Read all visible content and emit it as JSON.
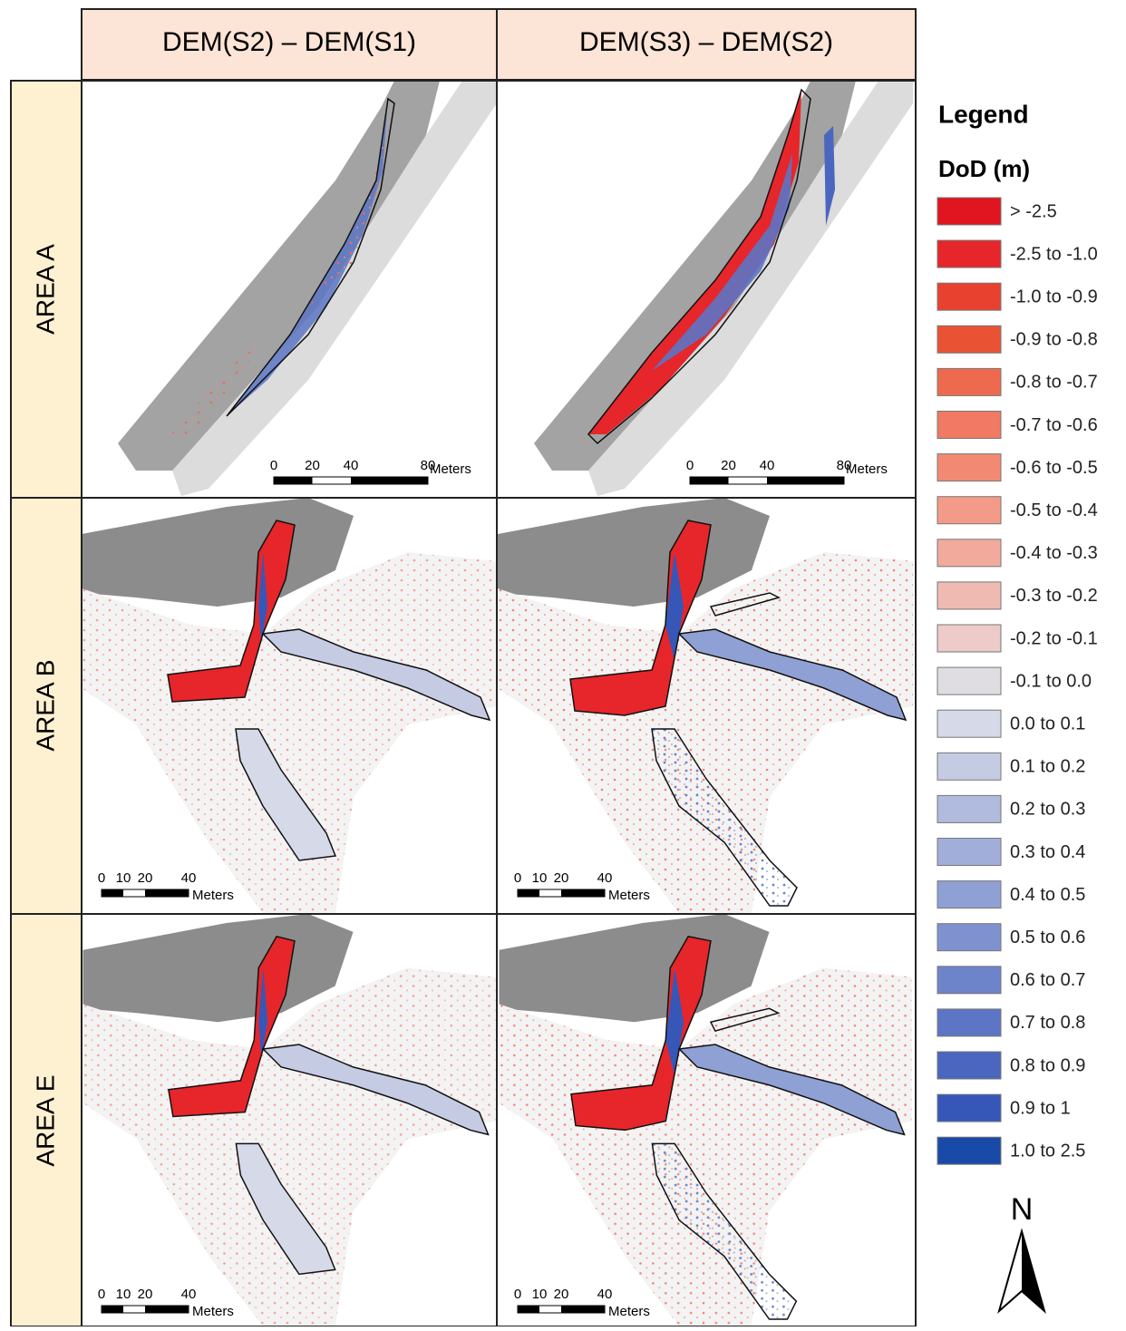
{
  "header": {
    "columns": [
      "DEM(S2) – DEM(S1)",
      "DEM(S3) – DEM(S2)"
    ]
  },
  "rows": [
    {
      "label": "AREA A",
      "scale_bar": {
        "ticks": [
          0,
          20,
          40,
          80
        ],
        "unit": "Meters"
      }
    },
    {
      "label": "AREA B",
      "scale_bar": {
        "ticks": [
          0,
          10,
          20,
          40
        ],
        "unit": "Meters"
      }
    },
    {
      "label": "AREA E",
      "scale_bar": {
        "ticks": [
          0,
          10,
          20,
          40
        ],
        "unit": "Meters"
      }
    }
  ],
  "legend": {
    "title": "Legend",
    "subtitle": "DoD (m)",
    "items": [
      {
        "label": "> -2.5",
        "color": "#e0151f"
      },
      {
        "label": "-2.5 to -1.0",
        "color": "#e6262a"
      },
      {
        "label": "-1.0 to -0.9",
        "color": "#e8412f"
      },
      {
        "label": "-0.9 to -0.8",
        "color": "#ea5234"
      },
      {
        "label": "-0.8 to -0.7",
        "color": "#ee6a4f"
      },
      {
        "label": "-0.7 to -0.6",
        "color": "#f07a63"
      },
      {
        "label": "-0.6 to -0.5",
        "color": "#f28a73"
      },
      {
        "label": "-0.5 to -0.4",
        "color": "#f39b88"
      },
      {
        "label": "-0.4 to -0.3",
        "color": "#f2aa9c"
      },
      {
        "label": "-0.3 to -0.2",
        "color": "#efbab2"
      },
      {
        "label": "-0.2 to -0.1",
        "color": "#eccbc8"
      },
      {
        "label": "-0.1 to 0.0",
        "color": "#e0dde2"
      },
      {
        "label": "0.0 to 0.1",
        "color": "#d6d9e8"
      },
      {
        "label": "0.1 to 0.2",
        "color": "#c5cbe3"
      },
      {
        "label": "0.2 to 0.3",
        "color": "#b0bbdd"
      },
      {
        "label": "0.3 to 0.4",
        "color": "#a0aed9"
      },
      {
        "label": "0.4 to 0.5",
        "color": "#8fa0d4"
      },
      {
        "label": "0.5 to 0.6",
        "color": "#7f92cf"
      },
      {
        "label": "0.6 to 0.7",
        "color": "#6e84ca"
      },
      {
        "label": "0.7 to 0.8",
        "color": "#5c75c4"
      },
      {
        "label": "0.8 to 0.9",
        "color": "#4a66bf"
      },
      {
        "label": "0.9 to 1",
        "color": "#3657b7"
      },
      {
        "label": "1.0 to 2.5",
        "color": "#1a4aa8"
      }
    ]
  },
  "north_arrow": {
    "label": "N"
  }
}
